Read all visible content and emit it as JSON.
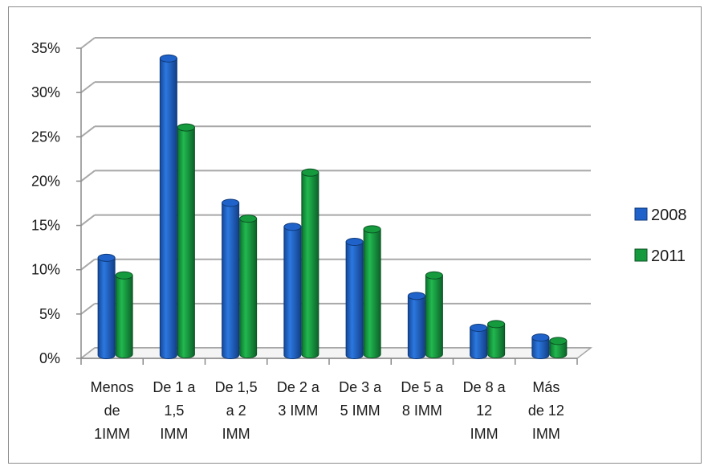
{
  "chart_data": {
    "type": "bar",
    "categories": [
      [
        "Menos",
        "de",
        "1IMM"
      ],
      [
        "De 1 a",
        "1,5",
        "IMM"
      ],
      [
        "De 1,5",
        "a 2",
        "IMM"
      ],
      [
        "De 2 a",
        "3 IMM"
      ],
      [
        "De 3 a",
        "5 IMM"
      ],
      [
        "De 5 a",
        "8 IMM"
      ],
      [
        "De 8 a",
        "12",
        "IMM"
      ],
      [
        "Más",
        "de 12",
        "IMM"
      ]
    ],
    "series": [
      {
        "name": "2008",
        "values": [
          10.8,
          33.3,
          17.0,
          14.3,
          12.6,
          6.5,
          2.9,
          1.8
        ],
        "color": "#1f62c9"
      },
      {
        "name": "2011",
        "values": [
          9.0,
          25.7,
          15.4,
          20.6,
          14.2,
          9.0,
          3.5,
          1.6
        ],
        "color": "#159a3e"
      }
    ],
    "y_ticks": [
      "0%",
      "5%",
      "10%",
      "15%",
      "20%",
      "25%",
      "30%",
      "35%"
    ],
    "ylim": [
      0,
      35
    ],
    "grid": true,
    "style": "3d-cylinder",
    "legend": "right",
    "title": "",
    "xlabel": "",
    "ylabel": ""
  }
}
